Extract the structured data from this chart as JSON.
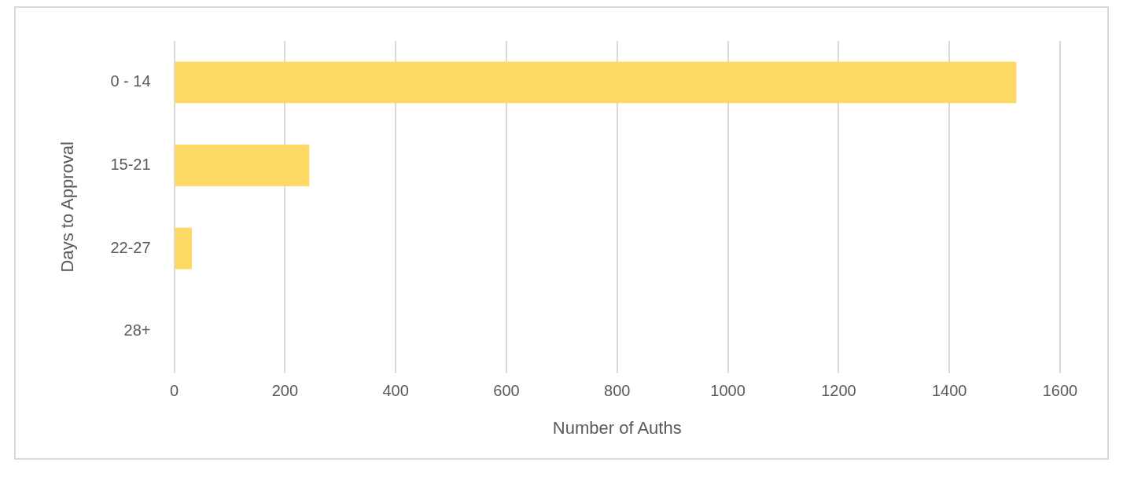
{
  "chart_data": {
    "type": "bar",
    "orientation": "horizontal",
    "xlabel": "Number of Auths",
    "ylabel": "Days to Approval",
    "categories": [
      "0 - 14",
      "15-21",
      "22-27",
      "28+"
    ],
    "values": [
      1521,
      244,
      32,
      0
    ],
    "color": "#ffd966",
    "xlim": [
      0,
      1600
    ],
    "xticks": [
      0,
      200,
      400,
      600,
      800,
      1000,
      1200,
      1400,
      1600
    ],
    "grid": "x",
    "legend": false
  }
}
